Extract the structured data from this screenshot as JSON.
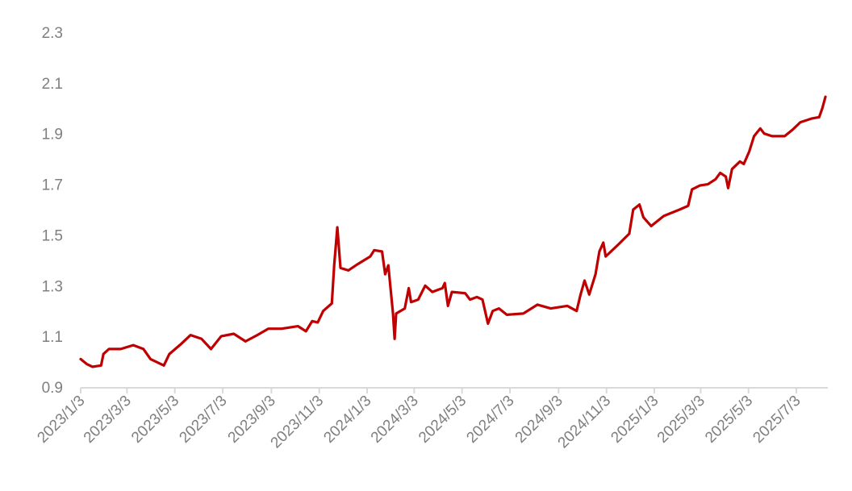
{
  "chart_data": {
    "type": "line",
    "title": "",
    "xlabel": "",
    "ylabel": "",
    "ylim": [
      0.9,
      2.3
    ],
    "yticks": [
      "0.9",
      "1.1",
      "1.3",
      "1.5",
      "1.7",
      "1.9",
      "2.1",
      "2.3"
    ],
    "xlim": [
      "2023-01-03",
      "2025-08-12"
    ],
    "xticks": [
      {
        "date": "2023-01-03",
        "label": "2023/1/3"
      },
      {
        "date": "2023-03-03",
        "label": "2023/3/3"
      },
      {
        "date": "2023-05-03",
        "label": "2023/5/3"
      },
      {
        "date": "2023-07-03",
        "label": "2023/7/3"
      },
      {
        "date": "2023-09-03",
        "label": "2023/9/3"
      },
      {
        "date": "2023-11-03",
        "label": "2023/11/3"
      },
      {
        "date": "2024-01-03",
        "label": "2024/1/3"
      },
      {
        "date": "2024-03-03",
        "label": "2024/3/3"
      },
      {
        "date": "2024-05-03",
        "label": "2024/5/3"
      },
      {
        "date": "2024-07-03",
        "label": "2024/7/3"
      },
      {
        "date": "2024-09-03",
        "label": "2024/9/3"
      },
      {
        "date": "2024-11-03",
        "label": "2024/11/3"
      },
      {
        "date": "2025-01-03",
        "label": "2025/1/3"
      },
      {
        "date": "2025-03-03",
        "label": "2025/3/3"
      },
      {
        "date": "2025-05-03",
        "label": "2025/5/3"
      },
      {
        "date": "2025-07-03",
        "label": "2025/7/3"
      }
    ],
    "grid": false,
    "legend": "none",
    "colors": {
      "line": "#c00000",
      "axis": "#d9d9d9",
      "text": "#7f7f7f"
    },
    "series": [
      {
        "x": [
          "2023-01-03",
          "2023-01-11",
          "2023-01-18",
          "2023-01-29",
          "2023-02-01",
          "2023-02-08",
          "2023-02-23",
          "2023-03-11",
          "2023-03-24",
          "2023-04-02",
          "2023-04-19",
          "2023-04-26",
          "2023-05-11",
          "2023-05-23",
          "2023-06-06",
          "2023-06-18",
          "2023-07-01",
          "2023-07-17",
          "2023-08-01",
          "2023-08-16",
          "2023-08-30",
          "2023-09-16",
          "2023-10-07",
          "2023-10-17",
          "2023-10-25",
          "2023-11-01",
          "2023-11-08",
          "2023-11-19",
          "2023-11-22",
          "2023-11-26",
          "2023-11-30",
          "2023-12-10",
          "2023-12-22",
          "2024-01-07",
          "2024-01-12",
          "2024-01-22",
          "2024-01-26",
          "2024-01-30",
          "2024-02-05",
          "2024-02-07",
          "2024-02-09",
          "2024-02-20",
          "2024-02-25",
          "2024-02-28",
          "2024-03-08",
          "2024-03-17",
          "2024-03-26",
          "2024-04-08",
          "2024-04-11",
          "2024-04-15",
          "2024-04-20",
          "2024-05-07",
          "2024-05-13",
          "2024-05-22",
          "2024-05-29",
          "2024-06-05",
          "2024-06-11",
          "2024-06-19",
          "2024-06-29",
          "2024-07-20",
          "2024-08-07",
          "2024-08-24",
          "2024-09-14",
          "2024-09-26",
          "2024-10-01",
          "2024-10-06",
          "2024-10-12",
          "2024-10-20",
          "2024-10-25",
          "2024-10-30",
          "2024-11-02",
          "2024-11-19",
          "2024-12-02",
          "2024-12-07",
          "2024-12-15",
          "2024-12-20",
          "2024-12-30",
          "2025-01-15",
          "2025-02-04",
          "2025-02-15",
          "2025-02-20",
          "2025-03-02",
          "2025-03-12",
          "2025-03-22",
          "2025-03-28",
          "2025-04-04",
          "2025-04-07",
          "2025-04-12",
          "2025-04-22",
          "2025-04-27",
          "2025-05-04",
          "2025-05-10",
          "2025-05-18",
          "2025-05-23",
          "2025-06-02",
          "2025-06-18",
          "2025-06-28",
          "2025-07-08",
          "2025-07-23",
          "2025-08-01",
          "2025-08-05",
          "2025-08-09"
        ],
        "y": [
          1.01,
          0.99,
          0.98,
          0.985,
          1.03,
          1.05,
          1.05,
          1.065,
          1.05,
          1.01,
          0.985,
          1.03,
          1.07,
          1.105,
          1.09,
          1.05,
          1.1,
          1.11,
          1.08,
          1.105,
          1.13,
          1.13,
          1.14,
          1.12,
          1.16,
          1.155,
          1.2,
          1.23,
          1.38,
          1.53,
          1.37,
          1.36,
          1.385,
          1.415,
          1.44,
          1.435,
          1.345,
          1.38,
          1.19,
          1.09,
          1.19,
          1.21,
          1.29,
          1.235,
          1.245,
          1.3,
          1.275,
          1.29,
          1.31,
          1.22,
          1.275,
          1.27,
          1.245,
          1.255,
          1.245,
          1.15,
          1.2,
          1.21,
          1.185,
          1.19,
          1.225,
          1.21,
          1.22,
          1.2,
          1.265,
          1.32,
          1.265,
          1.345,
          1.435,
          1.47,
          1.415,
          1.465,
          1.505,
          1.6,
          1.62,
          1.57,
          1.535,
          1.575,
          1.6,
          1.615,
          1.68,
          1.695,
          1.7,
          1.72,
          1.745,
          1.73,
          1.685,
          1.76,
          1.79,
          1.78,
          1.83,
          1.89,
          1.92,
          1.9,
          1.89,
          1.89,
          1.915,
          1.945,
          1.96,
          1.965,
          2.0,
          2.045
        ]
      }
    ]
  }
}
